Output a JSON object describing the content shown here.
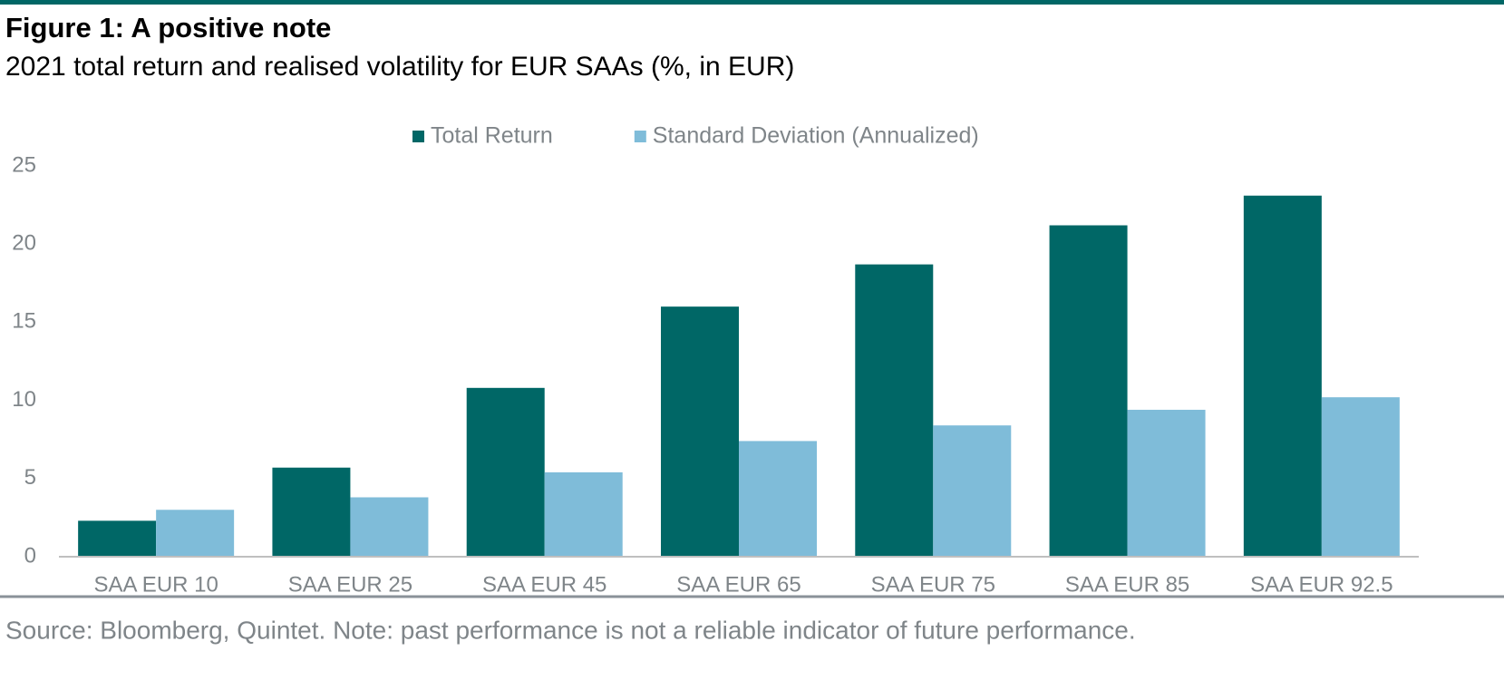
{
  "chart_data": {
    "type": "bar",
    "title": "Figure 1: A positive note",
    "subtitle": "2021 total return and realised volatility for EUR SAAs (%, in EUR)",
    "source": "Source: Bloomberg, Quintet. Note: past performance is not a reliable indicator of future performance.",
    "categories": [
      "SAA EUR 10",
      "SAA EUR 25",
      "SAA EUR 45",
      "SAA EUR 65",
      "SAA EUR 75",
      "SAA EUR 85",
      "SAA EUR 92.5"
    ],
    "series": [
      {
        "name": "Total Return",
        "color": "#006766",
        "values": [
          2.3,
          5.7,
          10.8,
          16.0,
          18.7,
          21.2,
          23.1
        ]
      },
      {
        "name": "Standard Deviation (Annualized)",
        "color": "#7fbcd9",
        "values": [
          3.0,
          3.8,
          5.4,
          7.4,
          8.4,
          9.4,
          10.2
        ]
      }
    ],
    "ylim": [
      0,
      25
    ],
    "yticks": [
      0,
      5,
      10,
      15,
      20,
      25
    ],
    "grid": false
  }
}
